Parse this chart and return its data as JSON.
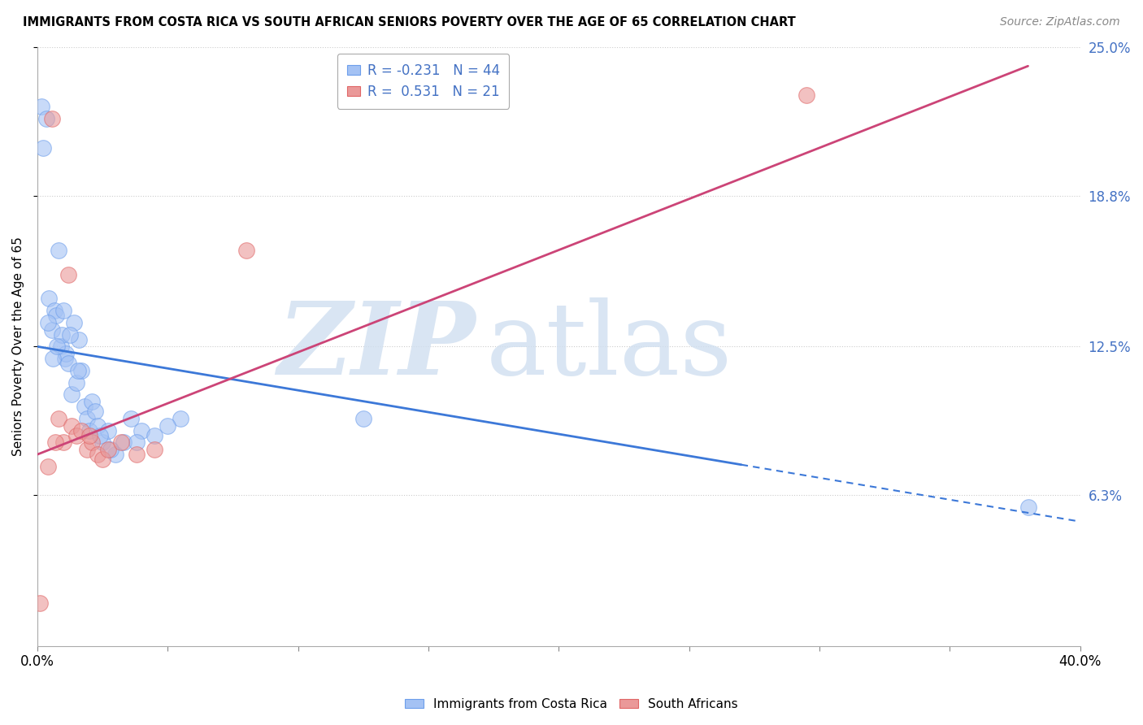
{
  "title": "IMMIGRANTS FROM COSTA RICA VS SOUTH AFRICAN SENIORS POVERTY OVER THE AGE OF 65 CORRELATION CHART",
  "source": "Source: ZipAtlas.com",
  "ylabel": "Seniors Poverty Over the Age of 65",
  "legend_blue_label": "Immigrants from Costa Rica",
  "legend_pink_label": "South Africans",
  "R_blue": -0.231,
  "N_blue": 44,
  "R_pink": 0.531,
  "N_pink": 21,
  "blue_color": "#a4c2f4",
  "pink_color": "#ea9999",
  "blue_edge_color": "#6d9eeb",
  "pink_edge_color": "#e06666",
  "blue_line_color": "#3c78d8",
  "pink_line_color": "#cc4477",
  "xlim": [
    0.0,
    40.0
  ],
  "ylim": [
    0.0,
    25.0
  ],
  "x_ticks_labeled": [
    0.0,
    40.0
  ],
  "x_ticks_minor": [
    5.0,
    10.0,
    15.0,
    20.0,
    25.0,
    30.0,
    35.0
  ],
  "y_ticks_right": [
    6.3,
    12.5,
    18.8,
    25.0
  ],
  "watermark_zip": "ZIP",
  "watermark_atlas": "atlas",
  "blue_scatter_x": [
    0.15,
    0.22,
    0.35,
    0.45,
    0.55,
    0.65,
    0.72,
    0.8,
    0.9,
    0.95,
    1.05,
    1.1,
    1.2,
    1.3,
    1.4,
    1.5,
    1.6,
    1.7,
    1.8,
    1.9,
    2.0,
    2.1,
    2.2,
    2.3,
    2.5,
    2.7,
    3.0,
    3.3,
    3.6,
    4.0,
    4.5,
    5.5,
    0.4,
    0.6,
    0.75,
    1.0,
    1.25,
    1.55,
    2.4,
    2.8,
    3.8,
    5.0,
    12.5,
    38.0
  ],
  "blue_scatter_y": [
    22.5,
    20.8,
    22.0,
    14.5,
    13.2,
    14.0,
    13.8,
    16.5,
    12.5,
    13.0,
    12.0,
    12.2,
    11.8,
    10.5,
    13.5,
    11.0,
    12.8,
    11.5,
    10.0,
    9.5,
    9.0,
    10.2,
    9.8,
    9.2,
    8.5,
    9.0,
    8.0,
    8.5,
    9.5,
    9.0,
    8.8,
    9.5,
    13.5,
    12.0,
    12.5,
    14.0,
    13.0,
    11.5,
    8.8,
    8.2,
    8.5,
    9.2,
    9.5,
    5.8
  ],
  "pink_scatter_x": [
    0.1,
    0.55,
    0.8,
    1.0,
    1.3,
    1.5,
    1.7,
    1.9,
    2.1,
    2.3,
    2.5,
    2.7,
    3.2,
    3.8,
    4.5,
    0.4,
    1.2,
    2.0,
    8.0,
    29.5,
    0.7
  ],
  "pink_scatter_y": [
    1.8,
    22.0,
    9.5,
    8.5,
    9.2,
    8.8,
    9.0,
    8.2,
    8.5,
    8.0,
    7.8,
    8.2,
    8.5,
    8.0,
    8.2,
    7.5,
    15.5,
    8.8,
    16.5,
    23.0,
    8.5
  ],
  "blue_line_x0": 0.0,
  "blue_line_y0": 12.5,
  "blue_solid_x1": 27.0,
  "blue_line_x1": 40.0,
  "blue_line_y1": 5.2,
  "pink_line_x0": 0.0,
  "pink_line_y0": 8.0,
  "pink_line_x1": 38.0,
  "pink_line_y1": 24.2
}
